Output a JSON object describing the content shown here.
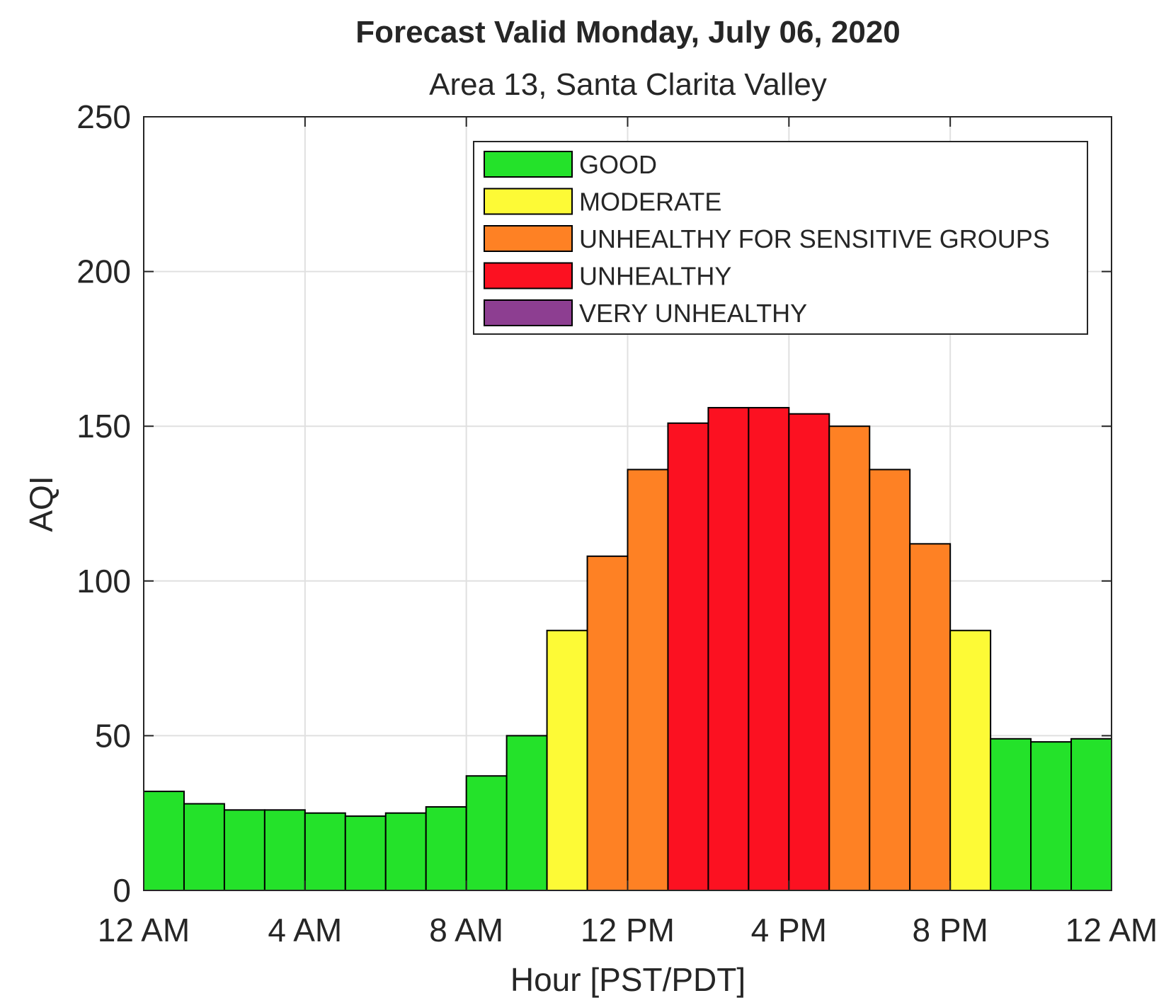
{
  "chart_data": {
    "type": "bar",
    "title": "Forecast Valid Monday, July 06, 2020",
    "subtitle": "Area 13, Santa Clarita Valley",
    "xlabel": "Hour [PST/PDT]",
    "ylabel": "AQI",
    "ylim": [
      0,
      250
    ],
    "xlim": [
      0,
      24
    ],
    "yticks": [
      0,
      50,
      100,
      150,
      200,
      250
    ],
    "xticks": [
      {
        "hour": 0,
        "label": "12 AM"
      },
      {
        "hour": 4,
        "label": "4 AM"
      },
      {
        "hour": 8,
        "label": "8 AM"
      },
      {
        "hour": 12,
        "label": "12 PM"
      },
      {
        "hour": 16,
        "label": "4 PM"
      },
      {
        "hour": 20,
        "label": "8 PM"
      },
      {
        "hour": 24,
        "label": "12 AM"
      }
    ],
    "grid": true,
    "legend_position": "top-right",
    "hours": [
      0,
      1,
      2,
      3,
      4,
      5,
      6,
      7,
      8,
      9,
      10,
      11,
      12,
      13,
      14,
      15,
      16,
      17,
      18,
      19,
      20,
      21,
      22,
      23
    ],
    "values": [
      32,
      28,
      26,
      26,
      25,
      24,
      25,
      27,
      37,
      50,
      84,
      108,
      136,
      151,
      156,
      156,
      154,
      150,
      136,
      112,
      84,
      49,
      48,
      49
    ],
    "categories_legend": [
      {
        "name": "GOOD",
        "color": "#24e22a",
        "min": 0
      },
      {
        "name": "MODERATE",
        "color": "#fdfa36",
        "min": 51
      },
      {
        "name": "UNHEALTHY FOR SENSITIVE GROUPS",
        "color": "#fe8124",
        "min": 101
      },
      {
        "name": "UNHEALTHY",
        "color": "#fc1121",
        "min": 151
      },
      {
        "name": "VERY UNHEALTHY",
        "color": "#8d3e91",
        "min": 201
      }
    ]
  }
}
